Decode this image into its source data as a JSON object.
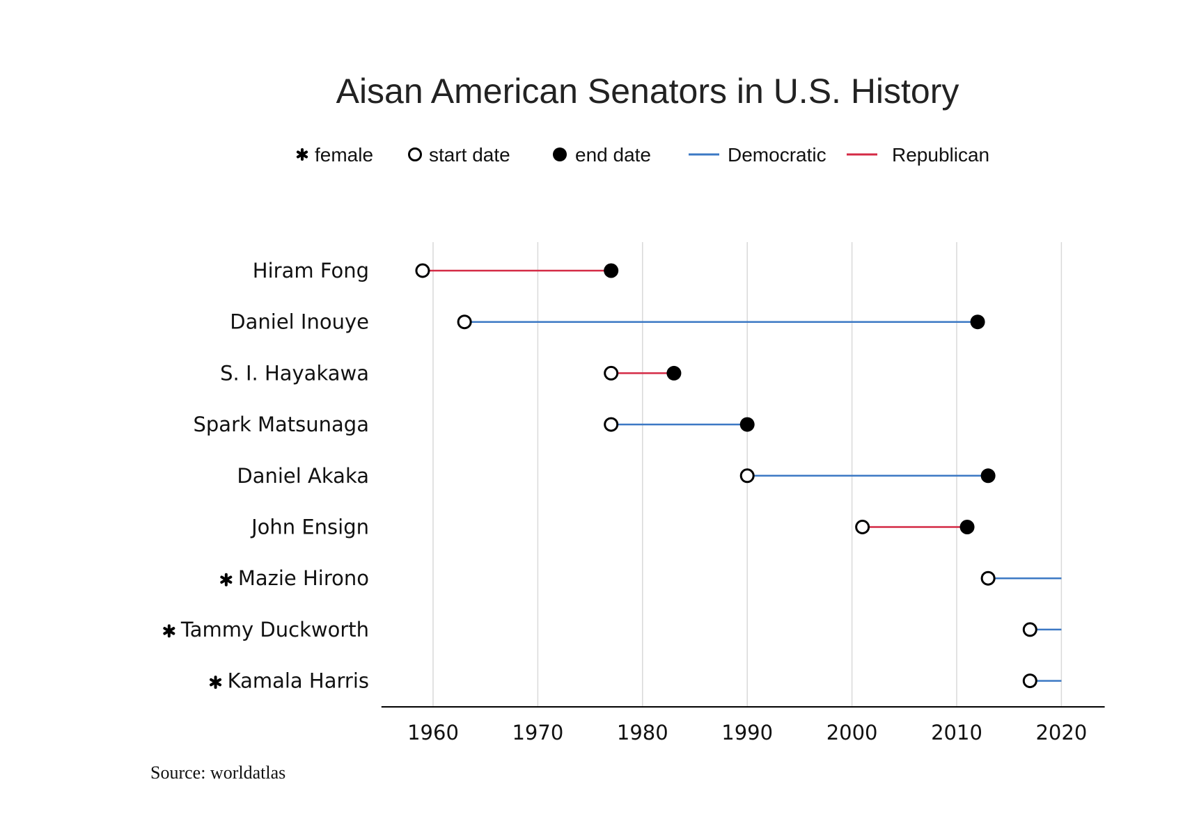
{
  "chart_data": {
    "type": "dumbbell",
    "title": "Aisan American Senators in U.S. History",
    "legend": {
      "placement": "top",
      "items": [
        {
          "marker": "asterisk",
          "label": "female"
        },
        {
          "marker": "open-circle",
          "label": "start date"
        },
        {
          "marker": "filled-circle",
          "label": "end date"
        },
        {
          "marker": "line",
          "color": "#3b78c4",
          "label": "Democratic"
        },
        {
          "marker": "line",
          "color": "#d42a45",
          "label": "Republican"
        }
      ]
    },
    "xlim": [
      1955,
      2024
    ],
    "xticks": [
      "1960",
      "1970",
      "1980",
      "1990",
      "2000",
      "2010",
      "2020"
    ],
    "grid": "vertical",
    "colors": {
      "Democratic": "#3b78c4",
      "Republican": "#d42a45"
    },
    "senators": [
      {
        "name": "Hiram Fong",
        "female": false,
        "party": "Republican",
        "start": 1959,
        "end": 1977,
        "end_shown": true
      },
      {
        "name": "Daniel Inouye",
        "female": false,
        "party": "Democratic",
        "start": 1963,
        "end": 2012,
        "end_shown": true
      },
      {
        "name": "S. I. Hayakawa",
        "female": false,
        "party": "Republican",
        "start": 1977,
        "end": 1983,
        "end_shown": true
      },
      {
        "name": "Spark Matsunaga",
        "female": false,
        "party": "Democratic",
        "start": 1977,
        "end": 1990,
        "end_shown": true
      },
      {
        "name": "Daniel Akaka",
        "female": false,
        "party": "Democratic",
        "start": 1990,
        "end": 2013,
        "end_shown": true
      },
      {
        "name": "John Ensign",
        "female": false,
        "party": "Republican",
        "start": 2001,
        "end": 2011,
        "end_shown": true
      },
      {
        "name": "Mazie Hirono",
        "female": true,
        "party": "Democratic",
        "start": 2013,
        "end": 2020,
        "end_shown": false
      },
      {
        "name": "Tammy Duckworth",
        "female": true,
        "party": "Democratic",
        "start": 2017,
        "end": 2020,
        "end_shown": false
      },
      {
        "name": "Kamala Harris",
        "female": true,
        "party": "Democratic",
        "start": 2017,
        "end": 2020,
        "end_shown": false
      }
    ],
    "source": "Source: worldatlas"
  }
}
